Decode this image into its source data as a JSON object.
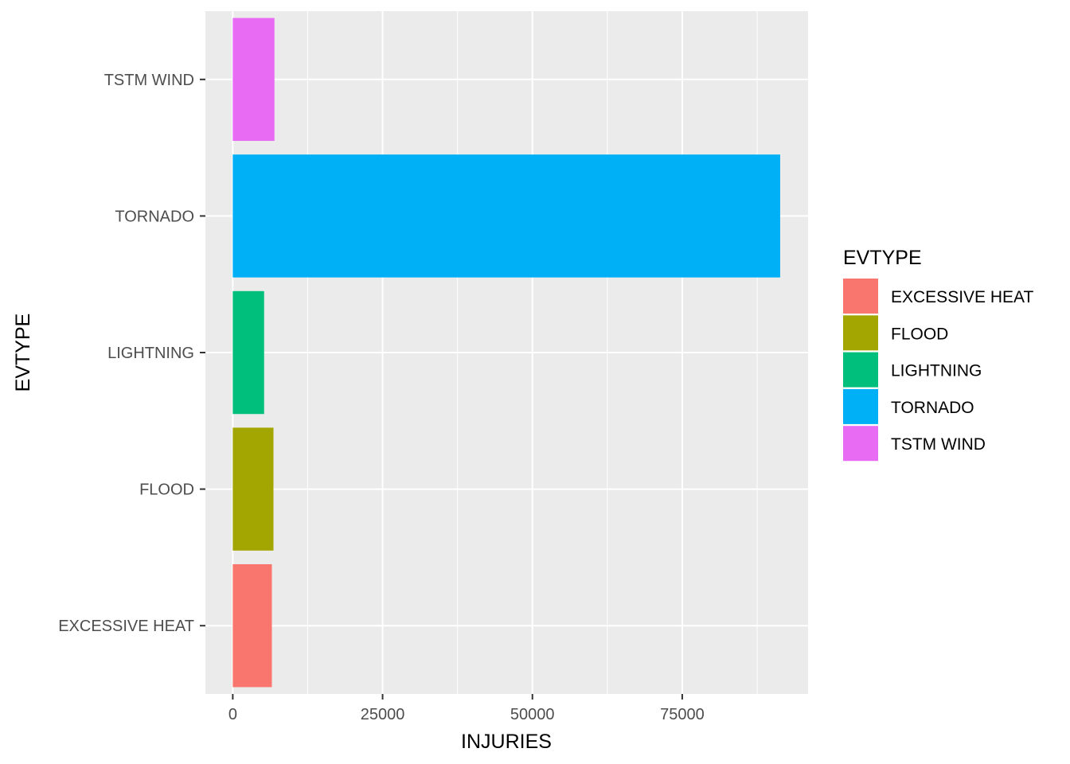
{
  "chart_data": {
    "type": "bar",
    "orientation": "horizontal",
    "title": "",
    "xlabel": "INJURIES",
    "ylabel": "EVTYPE",
    "categories": [
      "EXCESSIVE HEAT",
      "FLOOD",
      "LIGHTNING",
      "TORNADO",
      "TSTM WIND"
    ],
    "values": [
      6525,
      6789,
      5230,
      91346,
      6957
    ],
    "colors": [
      "#F8766D",
      "#A3A500",
      "#00BF7D",
      "#00B0F6",
      "#E76BF3"
    ],
    "xlim": [
      -4567,
      96000
    ],
    "x_ticks": [
      0,
      25000,
      50000,
      75000
    ],
    "x_tick_labels": [
      "0",
      "25000",
      "50000",
      "75000"
    ],
    "grid": true,
    "legend": {
      "title": "EVTYPE",
      "placement": "right",
      "items": [
        "EXCESSIVE HEAT",
        "FLOOD",
        "LIGHTNING",
        "TORNADO",
        "TSTM WIND"
      ]
    }
  }
}
